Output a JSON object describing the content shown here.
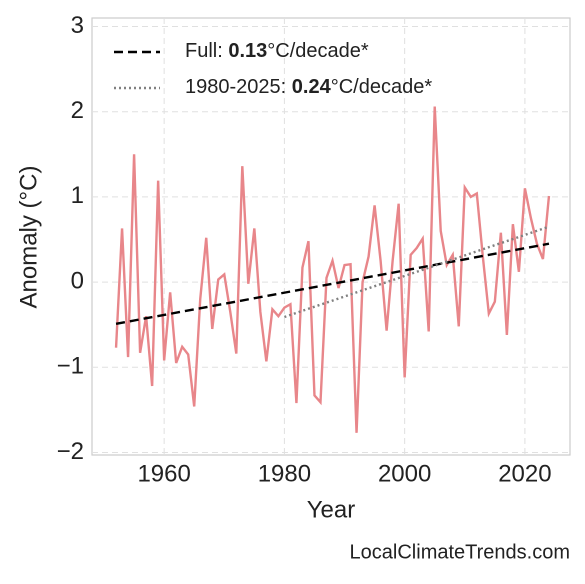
{
  "chart_data": {
    "type": "line",
    "y_label": "Anomaly (°C)",
    "x_label": "Year",
    "source": "LocalClimateTrends.com",
    "xlim": [
      1948,
      2027.5
    ],
    "ylim": [
      -2.03,
      3.1
    ],
    "xticks": [
      1960,
      1980,
      2000,
      2020
    ],
    "yticks": [
      {
        "value": -2,
        "label": "−2"
      },
      {
        "value": -1,
        "label": "−1"
      },
      0,
      1,
      2,
      3
    ],
    "grid": true,
    "legend": "upper left",
    "series": [
      {
        "color": "#e8868a",
        "style": "solid",
        "x": [
          1952,
          1953,
          1954,
          1955,
          1956,
          1957,
          1958,
          1959,
          1960,
          1961,
          1962,
          1963,
          1964,
          1965,
          1966,
          1967,
          1968,
          1969,
          1970,
          1971,
          1972,
          1973,
          1974,
          1975,
          1976,
          1977,
          1978,
          1979,
          1980,
          1981,
          1982,
          1983,
          1984,
          1985,
          1986,
          1987,
          1988,
          1989,
          1990,
          1991,
          1992,
          1993,
          1994,
          1995,
          1996,
          1997,
          1998,
          1999,
          2000,
          2001,
          2002,
          2003,
          2004,
          2005,
          2006,
          2007,
          2008,
          2009,
          2010,
          2011,
          2012,
          2013,
          2014,
          2015,
          2016,
          2017,
          2018,
          2019,
          2020,
          2021,
          2022,
          2023,
          2024
        ],
        "values": [
          -0.77,
          0.63,
          -0.88,
          1.5,
          -0.83,
          -0.4,
          -1.22,
          1.19,
          -0.92,
          -0.12,
          -0.95,
          -0.76,
          -0.85,
          -1.46,
          -0.2,
          0.52,
          -0.55,
          0.03,
          0.09,
          -0.35,
          -0.84,
          1.36,
          -0.02,
          0.63,
          -0.35,
          -0.93,
          -0.32,
          -0.4,
          -0.3,
          -0.26,
          -1.42,
          0.17,
          0.48,
          -1.33,
          -1.41,
          0.05,
          0.25,
          -0.07,
          0.2,
          0.21,
          -1.77,
          0.0,
          0.3,
          0.9,
          0.25,
          -0.57,
          0.25,
          0.92,
          -1.12,
          0.32,
          0.4,
          0.51,
          -0.58,
          2.06,
          0.6,
          0.2,
          0.32,
          -0.52,
          1.11,
          1.0,
          1.04,
          0.3,
          -0.37,
          -0.23,
          0.58,
          -0.62,
          0.68,
          0.12,
          1.1,
          0.75,
          0.45,
          0.27,
          1.01
        ]
      },
      {
        "label": [
          "Full: ",
          "0.13",
          "°C/decade*"
        ],
        "color": "#000000",
        "style": "dashed",
        "x": [
          1952,
          2024
        ],
        "values": [
          -0.49,
          0.45
        ]
      },
      {
        "label": [
          "1980-2025: ",
          "0.24",
          "°C/decade*"
        ],
        "color": "#808080",
        "style": "dotted",
        "x": [
          1980,
          2024
        ],
        "values": [
          -0.41,
          0.65
        ]
      }
    ]
  }
}
